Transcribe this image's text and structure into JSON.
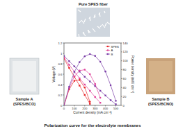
{
  "chart_data": {
    "type": "line",
    "x_label": "Current density (mA cm⁻²)",
    "y_label": "Voltage (V)",
    "y2_label": "Power density (mW cm⁻²)",
    "x": [
      0,
      50,
      100,
      150,
      200,
      250,
      300,
      350,
      400,
      450,
      500
    ],
    "xlim": [
      0,
      550
    ],
    "xticks": [
      0,
      100,
      200,
      300,
      400,
      500
    ],
    "ylim": [
      0,
      1.2
    ],
    "yticks": [
      0,
      0.2,
      0.4,
      0.6,
      0.8,
      1.0,
      1.2
    ],
    "y2lim": [
      0,
      140
    ],
    "y2ticks": [
      0,
      20,
      40,
      60,
      80,
      100,
      120,
      140
    ],
    "legend": "upper right",
    "series": [
      {
        "name": "SPES",
        "color": "#e8262a",
        "marker": "square",
        "values": [
          0.9,
          0.72,
          0.55,
          0.38,
          0.2,
          0.03,
          null,
          null,
          null,
          null,
          null
        ]
      },
      {
        "name": "A",
        "color": "#e0409a",
        "marker": "square",
        "values": [
          0.92,
          0.78,
          0.65,
          0.52,
          0.4,
          0.28,
          0.16,
          0.05,
          null,
          null,
          null
        ]
      },
      {
        "name": "B",
        "color": "#7b3fa8",
        "marker": "square",
        "values": [
          0.95,
          0.85,
          0.75,
          0.65,
          0.55,
          0.46,
          0.37,
          0.28,
          0.19,
          0.1,
          0.02
        ]
      },
      {
        "name": "SPES",
        "color": "#e8262a",
        "marker": "circle",
        "axis": "y2",
        "values": [
          0,
          36,
          55,
          57,
          40,
          8,
          null,
          null,
          null,
          null,
          null
        ]
      },
      {
        "name": "A",
        "color": "#e0409a",
        "marker": "circle",
        "axis": "y2",
        "values": [
          0,
          39,
          65,
          78,
          80,
          70,
          48,
          17,
          null,
          null,
          null
        ]
      },
      {
        "name": "B",
        "color": "#7b3fa8",
        "marker": "circle",
        "axis": "y2",
        "values": [
          0,
          42,
          75,
          97,
          110,
          115,
          111,
          98,
          76,
          45,
          10
        ]
      }
    ]
  },
  "panels": {
    "top": "Pure SPES fiber",
    "left": [
      "Sample A",
      "(SPES/BCO)"
    ],
    "right": [
      "Sample B",
      "(SPES/BCNO)"
    ],
    "caption": "Polarization curve for the electrolyte membranes"
  }
}
